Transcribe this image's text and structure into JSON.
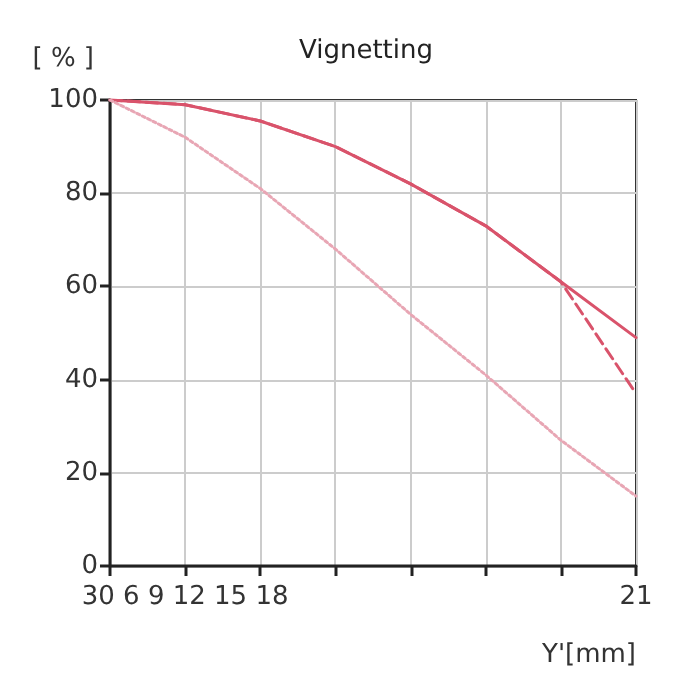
{
  "chart_data": {
    "type": "line",
    "title": "Vignetting",
    "ylabel": "[ % ]",
    "xlabel": "Y'[mm]",
    "categories": [
      null,
      "30 6 9 12 15 18",
      null,
      null,
      null,
      null,
      null,
      "21"
    ],
    "ylim": [
      0,
      100
    ],
    "yticks": [
      0,
      20,
      40,
      60,
      80,
      100
    ],
    "grid": true,
    "marker": "none",
    "series": [
      {
        "color": "#d9536b",
        "line_style": "solid",
        "values": [
          100,
          99,
          95.5,
          90,
          82,
          73,
          61,
          49
        ]
      },
      {
        "color": "#d9536b",
        "line_style": "dashed",
        "values": [
          100,
          99,
          95.5,
          90,
          82,
          73,
          61,
          37
        ]
      },
      {
        "color": "#e8a6b4",
        "line_style": "dotted",
        "values": [
          100,
          92,
          81,
          68,
          54,
          41,
          27,
          15
        ]
      }
    ]
  }
}
